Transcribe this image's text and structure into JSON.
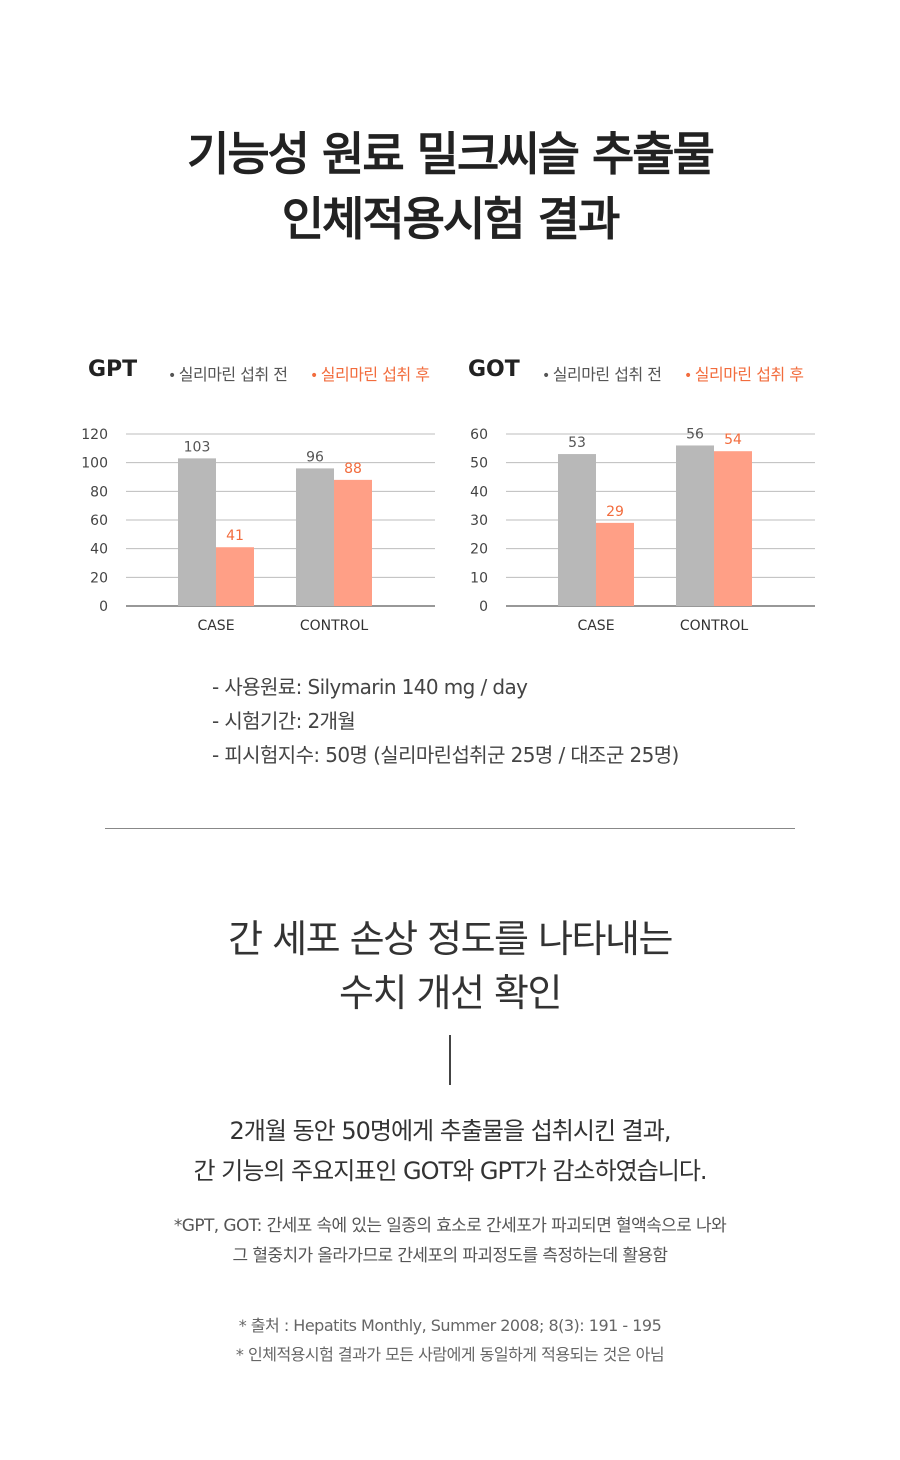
{
  "header": {
    "title_line1": "기능성 원료 밀크씨슬 추출물",
    "title_line2": "인체적용시험 결과"
  },
  "colors": {
    "before": "#b8b8b8",
    "after": "#ff9f86",
    "after_text": "#f26c3d"
  },
  "chart_data": [
    {
      "type": "bar",
      "title": "GPT",
      "categories": [
        "CASE",
        "CONTROL"
      ],
      "series": [
        {
          "name": "실리마린 섭취 전",
          "values": [
            103,
            96
          ]
        },
        {
          "name": "실리마린 섭취 후",
          "values": [
            41,
            88
          ]
        }
      ],
      "ylim": [
        0,
        120
      ],
      "yticks": [
        "0",
        "20",
        "40",
        "60",
        "80",
        "100",
        "120"
      ],
      "grid": true,
      "legend": "top"
    },
    {
      "type": "bar",
      "title": "GOT",
      "categories": [
        "CASE",
        "CONTROL"
      ],
      "series": [
        {
          "name": "실리마린 섭취 전",
          "values": [
            53,
            56
          ]
        },
        {
          "name": "실리마린 섭취 후",
          "values": [
            29,
            54
          ]
        }
      ],
      "ylim": [
        0,
        60
      ],
      "yticks": [
        "0",
        "10",
        "20",
        "30",
        "40",
        "50",
        "60"
      ],
      "grid": true,
      "legend": "top"
    }
  ],
  "info": {
    "material": "- 사용원료: Silymarin 140 mg / day",
    "period": "- 시험기간: 2개월",
    "subjects": "- 피시험지수: 50명 (실리마린섭취군 25명 / 대조군 25명)"
  },
  "section2": {
    "subtitle_line1": "간 세포 손상 정도를 나타내는",
    "subtitle_line2": "수치 개선 확인",
    "summary_line1": "2개월 동안 50명에게 추출물을 섭취시킨 결과,",
    "summary_line2": "간 기능의 주요지표인 GOT와 GPT가 감소하였습니다.",
    "note_line1": "*GPT, GOT: 간세포 속에 있는 일종의 효소로 간세포가 파괴되면 혈액속으로 나와",
    "note_line2": "그 혈중치가 올라가므로 간세포의 파괴정도를 측정하는데 활용함",
    "source": "* 출처 : Hepatits Monthly, Summer 2008; 8(3): 191 - 195",
    "disclaimer": "* 인체적용시험 결과가 모든 사람에게 동일하게 적용되는 것은 아님"
  }
}
